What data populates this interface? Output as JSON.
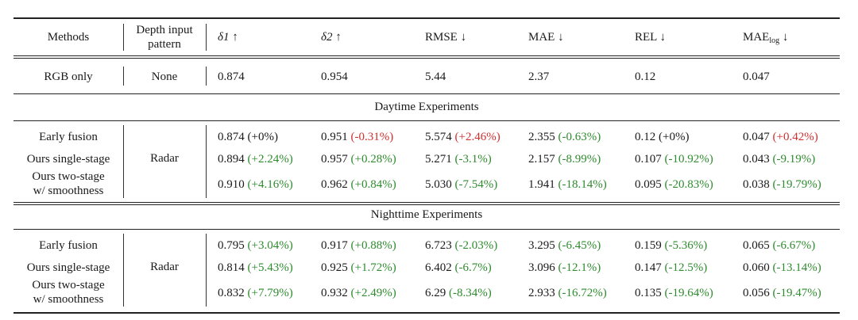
{
  "header": {
    "methods": "Methods",
    "depth_line1": "Depth input",
    "depth_line2": "pattern",
    "d1": "δ1 ↑",
    "d2": "δ2 ↑",
    "rmse": "RMSE ↓",
    "mae": "MAE ↓",
    "rel": "REL ↓",
    "maelog_main": "MAE",
    "maelog_sub": "log",
    "maelog_arrow": " ↓"
  },
  "baseline": {
    "method": "RGB only",
    "depth": "None",
    "values": [
      "0.874",
      "0.954",
      "5.44",
      "2.37",
      "0.12",
      "0.047"
    ]
  },
  "sections": [
    {
      "title": "Daytime Experiments",
      "depth": "Radar",
      "rows": [
        {
          "method_lines": [
            "Early fusion"
          ],
          "cells": [
            {
              "v": "0.874",
              "d": "(+0%)",
              "c": "neu"
            },
            {
              "v": "0.951",
              "d": "(-0.31%)",
              "c": "pos"
            },
            {
              "v": "5.574",
              "d": "(+2.46%)",
              "c": "pos"
            },
            {
              "v": "2.355",
              "d": "(-0.63%)",
              "c": "neg"
            },
            {
              "v": "0.12",
              "d": "(+0%)",
              "c": "neu"
            },
            {
              "v": "0.047",
              "d": "(+0.42%)",
              "c": "pos"
            }
          ]
        },
        {
          "method_lines": [
            "Ours single-stage"
          ],
          "cells": [
            {
              "v": "0.894",
              "d": "(+2.24%)",
              "c": "neg"
            },
            {
              "v": "0.957",
              "d": "(+0.28%)",
              "c": "neg"
            },
            {
              "v": "5.271",
              "d": "(-3.1%)",
              "c": "neg"
            },
            {
              "v": "2.157",
              "d": "(-8.99%)",
              "c": "neg"
            },
            {
              "v": "0.107",
              "d": "(-10.92%)",
              "c": "neg"
            },
            {
              "v": "0.043",
              "d": "(-9.19%)",
              "c": "neg"
            }
          ]
        },
        {
          "method_lines": [
            "Ours two-stage",
            "w/ smoothness"
          ],
          "cells": [
            {
              "v": "0.910",
              "d": "(+4.16%)",
              "c": "neg"
            },
            {
              "v": "0.962",
              "d": "(+0.84%)",
              "c": "neg"
            },
            {
              "v": "5.030",
              "d": "(-7.54%)",
              "c": "neg"
            },
            {
              "v": "1.941",
              "d": "(-18.14%)",
              "c": "neg"
            },
            {
              "v": "0.095",
              "d": "(-20.83%)",
              "c": "neg"
            },
            {
              "v": "0.038",
              "d": "(-19.79%)",
              "c": "neg"
            }
          ]
        }
      ]
    },
    {
      "title": "Nighttime Experiments",
      "depth": "Radar",
      "rows": [
        {
          "method_lines": [
            "Early fusion"
          ],
          "cells": [
            {
              "v": "0.795",
              "d": "(+3.04%)",
              "c": "neg"
            },
            {
              "v": "0.917",
              "d": "(+0.88%)",
              "c": "neg"
            },
            {
              "v": "6.723",
              "d": "(-2.03%)",
              "c": "neg"
            },
            {
              "v": "3.295",
              "d": "(-6.45%)",
              "c": "neg"
            },
            {
              "v": "0.159",
              "d": "(-5.36%)",
              "c": "neg"
            },
            {
              "v": "0.065",
              "d": "(-6.67%)",
              "c": "neg"
            }
          ]
        },
        {
          "method_lines": [
            "Ours single-stage"
          ],
          "cells": [
            {
              "v": "0.814",
              "d": "(+5.43%)",
              "c": "neg"
            },
            {
              "v": "0.925",
              "d": "(+1.72%)",
              "c": "neg"
            },
            {
              "v": "6.402",
              "d": "(-6.7%)",
              "c": "neg"
            },
            {
              "v": "3.096",
              "d": "(-12.1%)",
              "c": "neg"
            },
            {
              "v": "0.147",
              "d": "(-12.5%)",
              "c": "neg"
            },
            {
              "v": "0.060",
              "d": "(-13.14%)",
              "c": "neg"
            }
          ]
        },
        {
          "method_lines": [
            "Ours two-stage",
            "w/ smoothness"
          ],
          "cells": [
            {
              "v": "0.832",
              "d": "(+7.79%)",
              "c": "neg"
            },
            {
              "v": "0.932",
              "d": "(+2.49%)",
              "c": "neg"
            },
            {
              "v": "6.29",
              "d": "(-8.34%)",
              "c": "neg"
            },
            {
              "v": "2.933",
              "d": "(-16.72%)",
              "c": "neg"
            },
            {
              "v": "0.135",
              "d": "(-19.64%)",
              "c": "neg"
            },
            {
              "v": "0.056",
              "d": "(-19.47%)",
              "c": "neg"
            }
          ]
        }
      ]
    }
  ]
}
